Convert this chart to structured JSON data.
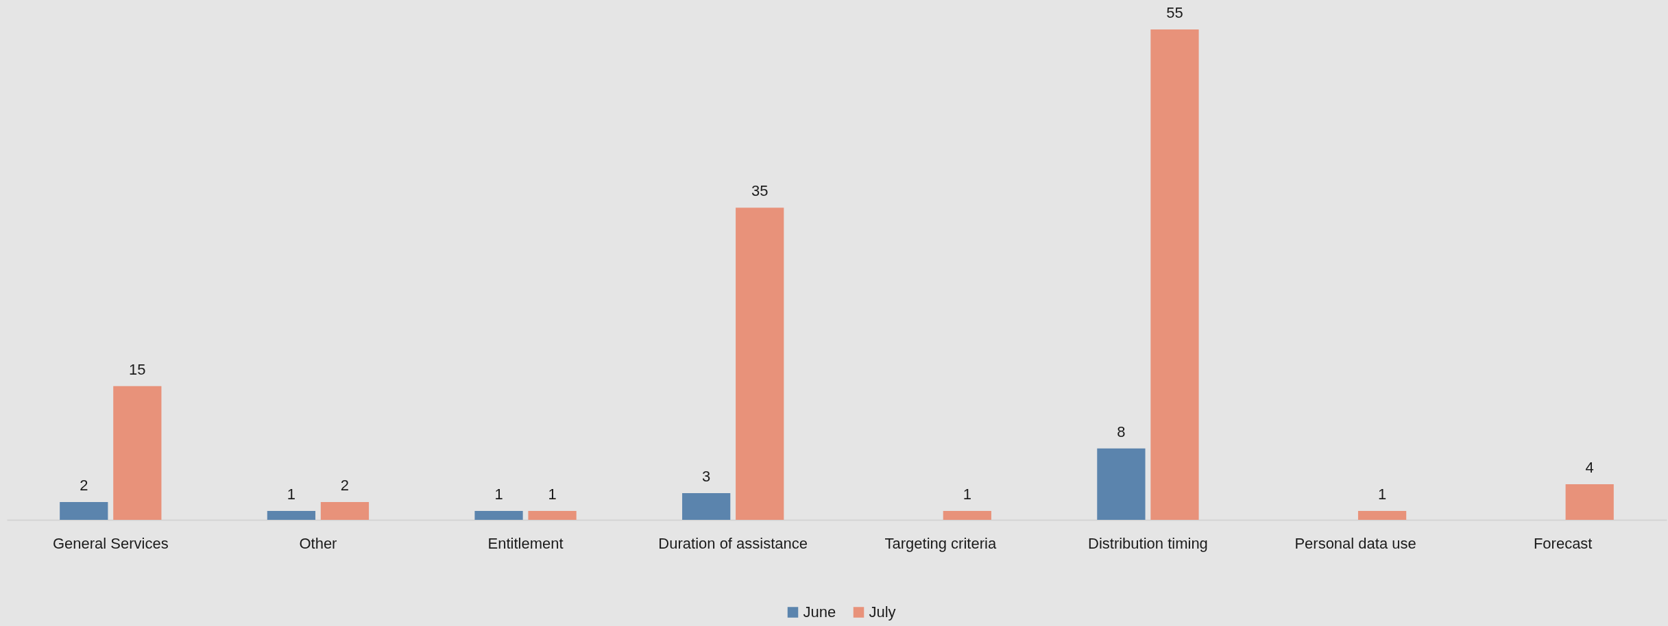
{
  "chart_data": {
    "type": "bar",
    "categories": [
      "General Services",
      "Other",
      "Entitlement",
      "Duration of assistance",
      "Targeting criteria",
      "Distribution timing",
      "Personal data use",
      "Forecast"
    ],
    "series": [
      {
        "name": "June",
        "color": "#5b84ad",
        "values": [
          2,
          1,
          1,
          3,
          null,
          8,
          null,
          null
        ]
      },
      {
        "name": "July",
        "color": "#e8927a",
        "values": [
          15,
          2,
          1,
          35,
          1,
          55,
          1,
          4
        ]
      }
    ],
    "data_labels": true,
    "legend": "bottom",
    "tick_labels": "x"
  }
}
